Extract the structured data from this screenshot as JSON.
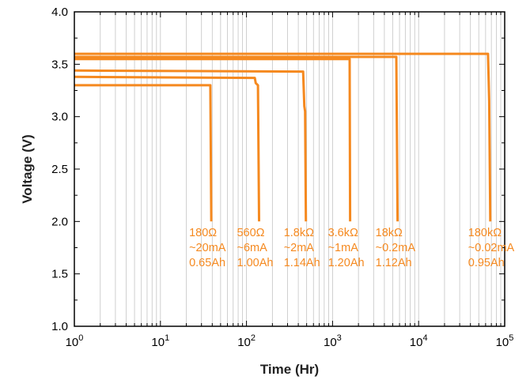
{
  "chart_data": {
    "type": "line",
    "title": "",
    "xlabel": "Time (Hr)",
    "ylabel": "Voltage (V)",
    "x_scale": "log",
    "xlim": [
      1,
      100000
    ],
    "ylim": [
      1.0,
      4.0
    ],
    "grid": true,
    "line_color": "#f5891f",
    "x_ticks": [
      {
        "value": 1,
        "base": "10",
        "exp": "0"
      },
      {
        "value": 10,
        "base": "10",
        "exp": "1"
      },
      {
        "value": 100,
        "base": "10",
        "exp": "2"
      },
      {
        "value": 1000,
        "base": "10",
        "exp": "3"
      },
      {
        "value": 10000,
        "base": "10",
        "exp": "4"
      },
      {
        "value": 100000,
        "base": "10",
        "exp": "5"
      }
    ],
    "y_ticks": [
      "1.0",
      "1.5",
      "2.0",
      "2.5",
      "3.0",
      "3.5",
      "4.0"
    ],
    "series": [
      {
        "points": [
          [
            1,
            3.3
          ],
          [
            38,
            3.3
          ],
          [
            39,
            2.0
          ]
        ],
        "labels": [
          "180Ω",
          "~20mA",
          "0.65Ah"
        ]
      },
      {
        "points": [
          [
            1,
            3.38
          ],
          [
            125,
            3.37
          ],
          [
            128,
            3.32
          ],
          [
            136,
            3.3
          ],
          [
            140,
            2.0
          ]
        ],
        "labels": [
          "560Ω",
          "~6mA",
          "1.00Ah"
        ]
      },
      {
        "points": [
          [
            1,
            3.44
          ],
          [
            455,
            3.43
          ],
          [
            470,
            3.1
          ],
          [
            480,
            3.05
          ],
          [
            490,
            2.0
          ]
        ],
        "labels": [
          "1.8kΩ",
          "~2mA",
          "1.14Ah"
        ]
      },
      {
        "points": [
          [
            1,
            3.55
          ],
          [
            1580,
            3.55
          ],
          [
            1600,
            2.0
          ]
        ],
        "labels": [
          "3.6kΩ",
          "~1mA",
          "1.20Ah"
        ]
      },
      {
        "points": [
          [
            1,
            3.57
          ],
          [
            5500,
            3.57
          ],
          [
            5700,
            2.0
          ]
        ],
        "labels": [
          "18kΩ",
          "~0.2mA",
          "1.12Ah"
        ]
      },
      {
        "points": [
          [
            1,
            3.6
          ],
          [
            64000,
            3.6
          ],
          [
            66000,
            3.15
          ],
          [
            68000,
            2.0
          ]
        ],
        "labels": [
          "180kΩ",
          "~0.02mA",
          "0.95Ah"
        ]
      }
    ]
  }
}
